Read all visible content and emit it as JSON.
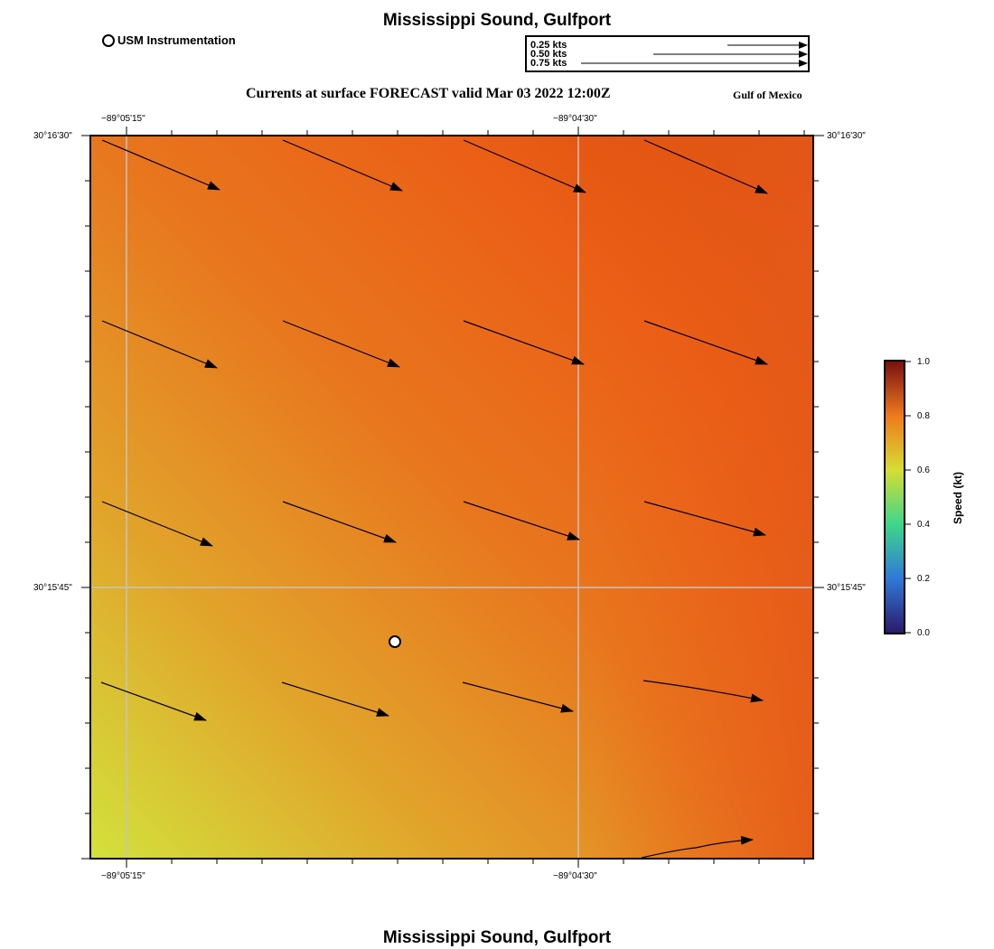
{
  "title": "Mississippi Sound, Gulfport",
  "subtitle": "Currents at surface FORECAST valid Mar 03 2022 12:00Z",
  "region_label": "Gulf of Mexico",
  "footer_title": "Mississippi Sound, Gulfport",
  "legend": {
    "station_label": "USM Instrumentation"
  },
  "vector_scale": [
    "0.25 kts",
    "0.50 kts",
    "0.75 kts"
  ],
  "axes": {
    "lon_ticks": [
      "−89°05'15\"",
      "−89°04'30\""
    ],
    "lat_ticks": [
      "30°16'30\"",
      "30°15'45\""
    ]
  },
  "colorbar": {
    "title": "Speed (kt)",
    "ticks": [
      "1.0",
      "0.8",
      "0.6",
      "0.4",
      "0.2",
      "0.0"
    ],
    "stops": [
      "#2b1a6b",
      "#2f7ad8",
      "#3fd68a",
      "#d6dd33",
      "#ee7a1d",
      "#7a1010"
    ]
  },
  "colors": {
    "speed_high": "#d94e0f",
    "speed_mid": "#eb5f16",
    "speed_low": "#d6df39",
    "grid": "#c0c0c0"
  }
}
